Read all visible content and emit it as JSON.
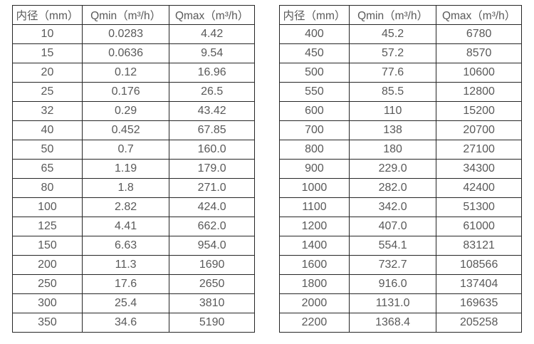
{
  "colors": {
    "background": "#ffffff",
    "border": "#262626",
    "text": "#595959"
  },
  "tables": [
    {
      "name": "flow-spec-table-small-diameters",
      "headers": [
        "内径（mm）",
        "Qmin（m³/h）",
        "Qmax（m³/h）"
      ],
      "rows": [
        [
          "10",
          "0.0283",
          "4.42"
        ],
        [
          "15",
          "0.0636",
          "9.54"
        ],
        [
          "20",
          "0.12",
          "16.96"
        ],
        [
          "25",
          "0.176",
          "26.5"
        ],
        [
          "32",
          "0.29",
          "43.42"
        ],
        [
          "40",
          "0.452",
          "67.85"
        ],
        [
          "50",
          "0.7",
          "160.0"
        ],
        [
          "65",
          "1.19",
          "179.0"
        ],
        [
          "80",
          "1.8",
          "271.0"
        ],
        [
          "100",
          "2.82",
          "424.0"
        ],
        [
          "125",
          "4.41",
          "662.0"
        ],
        [
          "150",
          "6.63",
          "954.0"
        ],
        [
          "200",
          "11.3",
          "1690"
        ],
        [
          "250",
          "17.6",
          "2650"
        ],
        [
          "300",
          "25.4",
          "3810"
        ],
        [
          "350",
          "34.6",
          "5190"
        ]
      ]
    },
    {
      "name": "flow-spec-table-large-diameters",
      "headers": [
        "内径（mm）",
        "Qmin（m³/h）",
        "Qmax（m³/h）"
      ],
      "rows": [
        [
          "400",
          "45.2",
          "6780"
        ],
        [
          "450",
          "57.2",
          "8570"
        ],
        [
          "500",
          "77.6",
          "10600"
        ],
        [
          "550",
          "85.5",
          "12800"
        ],
        [
          "600",
          "110",
          "15200"
        ],
        [
          "700",
          "138",
          "20700"
        ],
        [
          "800",
          "180",
          "27100"
        ],
        [
          "900",
          "229.0",
          "34300"
        ],
        [
          "1000",
          "282.0",
          "42400"
        ],
        [
          "1100",
          "342.0",
          "51300"
        ],
        [
          "1200",
          "407.0",
          "61000"
        ],
        [
          "1400",
          "554.1",
          "83121"
        ],
        [
          "1600",
          "732.7",
          "108566"
        ],
        [
          "1800",
          "916.0",
          "137404"
        ],
        [
          "2000",
          "1131.0",
          "169635"
        ],
        [
          "2200",
          "1368.4",
          "205258"
        ]
      ]
    }
  ]
}
